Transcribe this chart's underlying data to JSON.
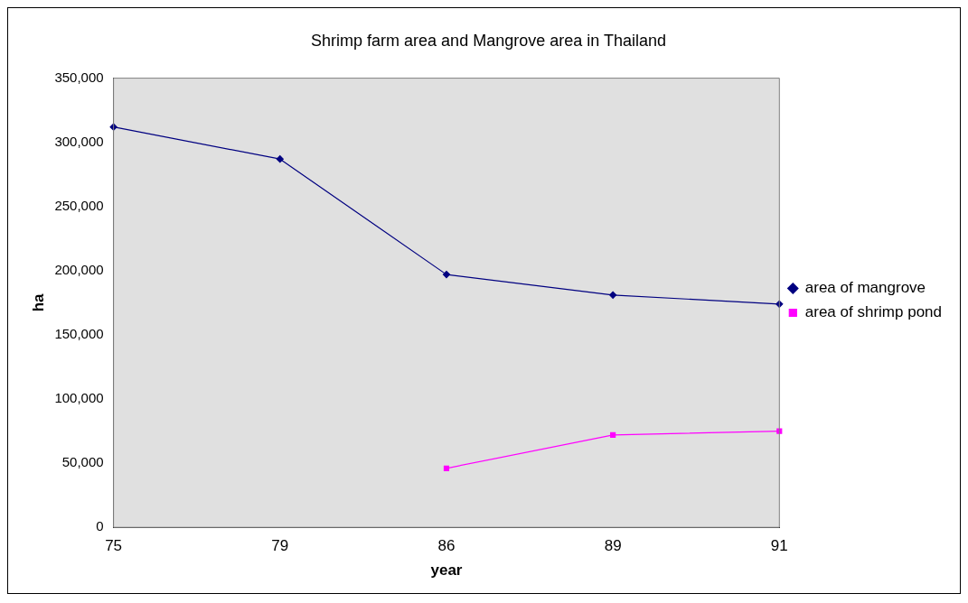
{
  "chart_data": {
    "type": "line",
    "title": "Shrimp farm area and Mangrove area in Thailand",
    "xlabel": "year",
    "ylabel": "ha",
    "categories": [
      "75",
      "79",
      "86",
      "89",
      "91"
    ],
    "series": [
      {
        "name": "area of mangrove",
        "color": "#000080",
        "marker": "diamond",
        "values": [
          312000,
          287000,
          197000,
          181000,
          174000
        ]
      },
      {
        "name": "area of shrimp pond",
        "color": "#ff00ff",
        "marker": "square",
        "values": [
          null,
          null,
          46000,
          72000,
          75000
        ]
      }
    ],
    "ylim": [
      0,
      350000
    ],
    "yticks": [
      {
        "value": 0,
        "label": "0"
      },
      {
        "value": 50000,
        "label": "50,000"
      },
      {
        "value": 100000,
        "label": "100,000"
      },
      {
        "value": 150000,
        "label": "150,000"
      },
      {
        "value": 200000,
        "label": "200,000"
      },
      {
        "value": 250000,
        "label": "250,000"
      },
      {
        "value": 300000,
        "label": "300,000"
      },
      {
        "value": 350000,
        "label": "350,000"
      }
    ],
    "grid": false,
    "legend": "right",
    "line_style": "solid"
  }
}
